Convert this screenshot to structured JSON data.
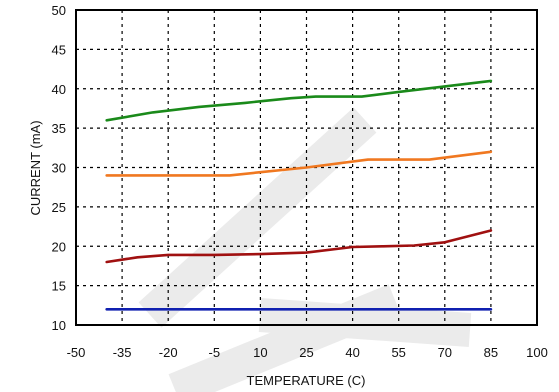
{
  "chart_data": {
    "type": "line",
    "title": "",
    "xlabel": "TEMPERATURE (C)",
    "ylabel": "CURRENT (mA)",
    "xlim": [
      -50,
      100
    ],
    "ylim": [
      10,
      50
    ],
    "xticks": [
      "-50",
      "-35",
      "-20",
      "-5",
      "10",
      "25",
      "40",
      "55",
      "70",
      "85",
      "100"
    ],
    "yticks": [
      "10",
      "15",
      "20",
      "25",
      "30",
      "35",
      "40",
      "45",
      "50"
    ],
    "grid": true,
    "watermark": "DELETE",
    "series": [
      {
        "color": "#1a8a1a",
        "x": [
          -40,
          -25,
          -10,
          5,
          20,
          28,
          43,
          55,
          70,
          85
        ],
        "y": [
          36,
          37,
          37.7,
          38.2,
          38.8,
          39,
          39,
          39.6,
          40.3,
          41
        ]
      },
      {
        "color": "#f07820",
        "x": [
          -40,
          -25,
          -10,
          0,
          10,
          25,
          45,
          55,
          65,
          85
        ],
        "y": [
          29,
          29,
          29,
          29,
          29.4,
          30,
          31,
          31,
          31,
          32
        ]
      },
      {
        "color": "#a01010",
        "x": [
          -40,
          -30,
          -20,
          -5,
          10,
          25,
          40,
          50,
          60,
          70,
          85
        ],
        "y": [
          18,
          18.6,
          18.9,
          18.9,
          19,
          19.2,
          19.9,
          20,
          20.1,
          20.5,
          22
        ]
      },
      {
        "color": "#1020b0",
        "x": [
          -40,
          85
        ],
        "y": [
          12,
          12
        ]
      }
    ]
  }
}
